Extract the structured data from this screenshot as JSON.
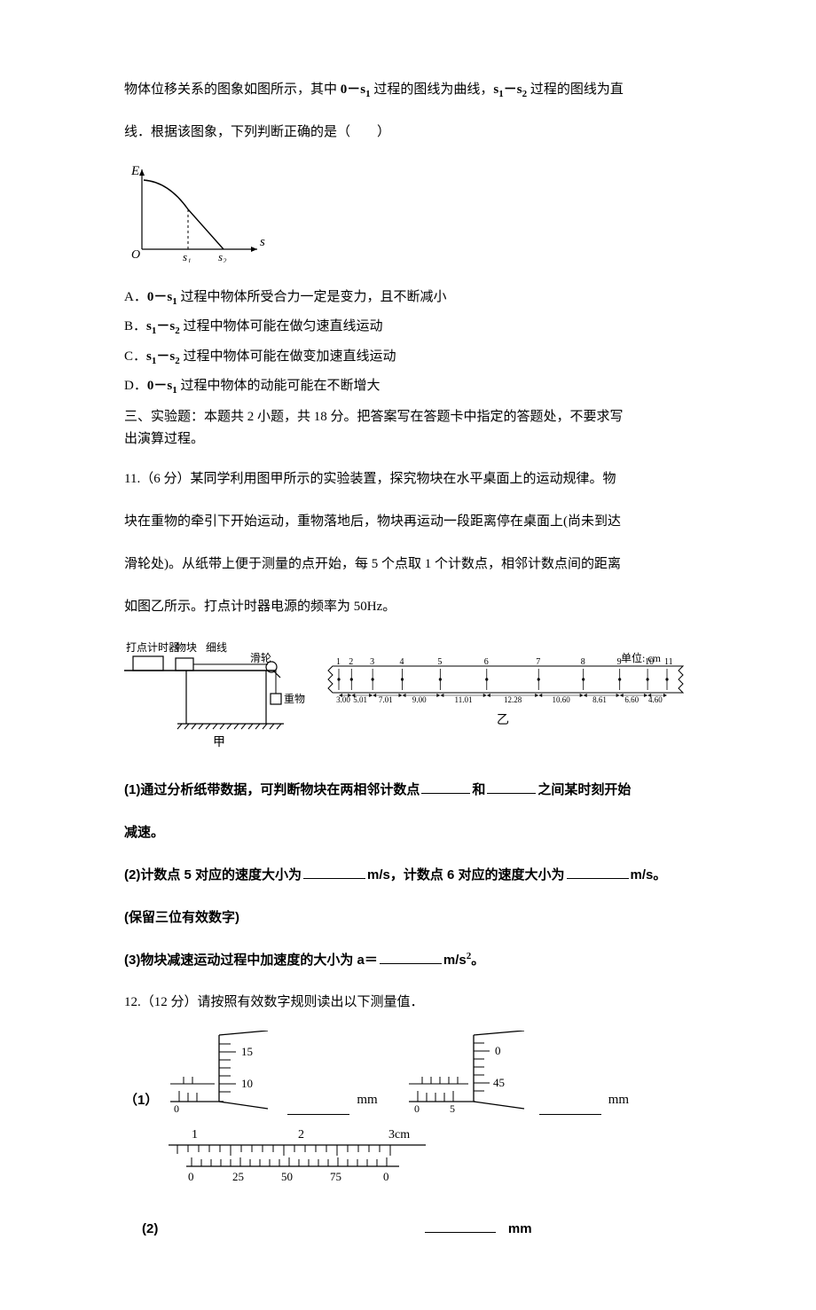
{
  "intro": {
    "line1_a": "物体位移关系的图象如图所示，其中 ",
    "line1_b": "0－s",
    "line1_c": " 过程的图线为曲线，",
    "line1_d": "s",
    "line1_e": "－s",
    "line1_f": " 过程的图线为直",
    "line2": "线．根据该图象，下列判断正确的是（　　）"
  },
  "sub1": "1",
  "sub2": "2",
  "graph_ES": {
    "y_label": "E",
    "x_label": "s",
    "tick1": "s₁",
    "tick2": "s₂",
    "axis_color": "#000000",
    "curve_color": "#000000",
    "width": 160,
    "height": 110
  },
  "options": {
    "A_pre": "A．",
    "A_a": "0－s",
    "A_b": " 过程中物体所受合力一定是变力，且不断减小",
    "B_pre": "B．",
    "B_a": "s",
    "B_b": "－s",
    "B_c": " 过程中物体可能在做匀速直线运动",
    "C_pre": "C．",
    "C_a": "s",
    "C_b": "－s",
    "C_c": " 过程中物体可能在做变加速直线运动",
    "D_pre": "D．",
    "D_a": "0－s",
    "D_b": " 过程中物体的动能可能在不断增大"
  },
  "section3": {
    "l1": "三、实验题：本题共 2 小题，共 18 分。把答案写在答题卡中指定的答题处，不要求写",
    "l2": "出演算过程。"
  },
  "q11": {
    "p1": "11.（6 分）某同学利用图甲所示的实验装置，探究物块在水平桌面上的运动规律。物",
    "p2": "块在重物的牵引下开始运动，重物落地后，物块再运动一段距离停在桌面上(尚未到达",
    "p3": "滑轮处)。从纸带上便于测量的点开始，每 5 个点取 1 个计数点，相邻计数点间的距离",
    "p4": "如图乙所示。打点计时器电源的频率为 50Hz。",
    "sub1_a": "(1)通过分析纸带数据，可判断物块在两相邻计数点",
    "sub1_b": "和",
    "sub1_c": "之间某时刻开始",
    "sub1_d": "减速。",
    "sub2_a": "(2)计数点 5 对应的速度大小为",
    "sub2_b": "m/s，计数点 6 对应的速度大小为",
    "sub2_c": "m/s。",
    "sub2_d": "(保留三位有效数字)",
    "sub3_a": "(3)物块减速运动过程中加速度的大小为 a＝",
    "sub3_b": "m/s",
    "sub3_c": "。"
  },
  "apparatus": {
    "labels": {
      "timer": "打点计时器",
      "block": "物块",
      "string": "细线",
      "pulley": "滑轮",
      "weight": "重物",
      "jia": "甲",
      "yi": "乙",
      "unit": "单位: cm"
    },
    "tape": {
      "points": [
        "1",
        "2",
        "3",
        "4",
        "5",
        "6",
        "7",
        "8",
        "9",
        "10",
        "11"
      ],
      "segments": [
        "3.00",
        "5.01",
        "7.01",
        "9.00",
        "11.01",
        "12.28",
        "10.60",
        "8.61",
        "6.60",
        "4.60"
      ]
    }
  },
  "q12": {
    "header": "12.（12 分）请按照有效数字规则读出以下测量值．",
    "label1": "（1）",
    "label2": "(2)",
    "unit": "mm",
    "micrometer1": {
      "main_ticks": [
        "0"
      ],
      "thimble": [
        "15",
        "10"
      ]
    },
    "micrometer2": {
      "main_ticks": [
        "0",
        "5"
      ],
      "thimble": [
        "0",
        "45"
      ]
    },
    "vernier": {
      "main": [
        "1",
        "2",
        "3cm"
      ],
      "lower": [
        "0",
        "25",
        "50",
        "75",
        "0"
      ]
    }
  },
  "colors": {
    "stroke": "#000000",
    "bg": "#ffffff"
  }
}
